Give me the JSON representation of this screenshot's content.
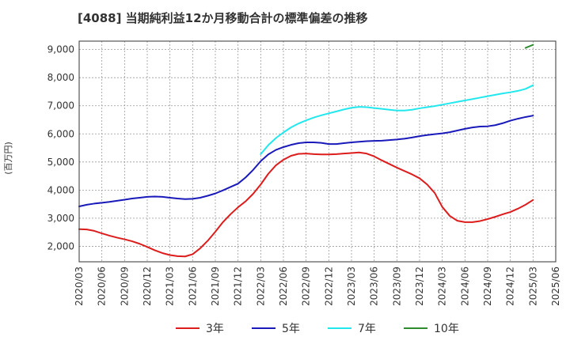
{
  "chart_data": {
    "type": "line",
    "title": "[4088]  当期純利益12か月移動合計の標準偏差の推移",
    "ylabel": "(百万円)",
    "xlabel": "",
    "ylim": [
      1450,
      9300
    ],
    "yticks": [
      2000,
      3000,
      4000,
      5000,
      6000,
      7000,
      8000,
      9000
    ],
    "ytick_labels": [
      "2,000",
      "3,000",
      "4,000",
      "5,000",
      "6,000",
      "7,000",
      "8,000",
      "9,000"
    ],
    "xlim": [
      "2020-03",
      "2025-06"
    ],
    "xtick_labels": [
      "2020/03",
      "2020/06",
      "2020/09",
      "2020/12",
      "2021/03",
      "2021/06",
      "2021/09",
      "2021/12",
      "2022/03",
      "2022/06",
      "2022/09",
      "2022/12",
      "2023/03",
      "2023/06",
      "2023/09",
      "2023/12",
      "2024/03",
      "2024/06",
      "2024/09",
      "2024/12",
      "2025/03",
      "2025/06"
    ],
    "grid": true,
    "legend_position": "bottom",
    "series": [
      {
        "name": "3年",
        "color": "#dd1c1c",
        "x": [
          "2020-03",
          "2020-04",
          "2020-05",
          "2020-06",
          "2020-07",
          "2020-08",
          "2020-09",
          "2020-10",
          "2020-11",
          "2020-12",
          "2021-01",
          "2021-02",
          "2021-03",
          "2021-04",
          "2021-05",
          "2021-06",
          "2021-07",
          "2021-08",
          "2021-09",
          "2021-10",
          "2021-11",
          "2021-12",
          "2022-01",
          "2022-02",
          "2022-03",
          "2022-04",
          "2022-05",
          "2022-06",
          "2022-07",
          "2022-08",
          "2022-09",
          "2022-10",
          "2022-11",
          "2022-12",
          "2023-01",
          "2023-02",
          "2023-03",
          "2023-04",
          "2023-05",
          "2023-06",
          "2023-07",
          "2023-08",
          "2023-09",
          "2023-10",
          "2023-11",
          "2023-12",
          "2024-01",
          "2024-02",
          "2024-03",
          "2024-04",
          "2024-05",
          "2024-06",
          "2024-07",
          "2024-08",
          "2024-09",
          "2024-10",
          "2024-11",
          "2024-12",
          "2025-01",
          "2025-02",
          "2025-03"
        ],
        "values": [
          2610,
          2600,
          2550,
          2460,
          2380,
          2310,
          2250,
          2180,
          2090,
          1980,
          1860,
          1760,
          1690,
          1650,
          1640,
          1720,
          1930,
          2200,
          2520,
          2860,
          3140,
          3390,
          3600,
          3870,
          4200,
          4580,
          4880,
          5080,
          5220,
          5290,
          5300,
          5280,
          5270,
          5270,
          5280,
          5300,
          5320,
          5340,
          5300,
          5200,
          5060,
          4930,
          4800,
          4680,
          4560,
          4420,
          4200,
          3900,
          3400,
          3080,
          2910,
          2860,
          2860,
          2900,
          2970,
          3050,
          3140,
          3220,
          3340,
          3480,
          3650
        ]
      },
      {
        "name": "5年",
        "color": "#1a1aba",
        "x": [
          "2020-03",
          "2020-04",
          "2020-05",
          "2020-06",
          "2020-07",
          "2020-08",
          "2020-09",
          "2020-10",
          "2020-11",
          "2020-12",
          "2021-01",
          "2021-02",
          "2021-03",
          "2021-04",
          "2021-05",
          "2021-06",
          "2021-07",
          "2021-08",
          "2021-09",
          "2021-10",
          "2021-11",
          "2021-12",
          "2022-01",
          "2022-02",
          "2022-03",
          "2022-04",
          "2022-05",
          "2022-06",
          "2022-07",
          "2022-08",
          "2022-09",
          "2022-10",
          "2022-11",
          "2022-12",
          "2023-01",
          "2023-02",
          "2023-03",
          "2023-04",
          "2023-05",
          "2023-06",
          "2023-07",
          "2023-08",
          "2023-09",
          "2023-10",
          "2023-11",
          "2023-12",
          "2024-01",
          "2024-02",
          "2024-03",
          "2024-04",
          "2024-05",
          "2024-06",
          "2024-07",
          "2024-08",
          "2024-09",
          "2024-10",
          "2024-11",
          "2024-12",
          "2025-01",
          "2025-02",
          "2025-03"
        ],
        "values": [
          3420,
          3480,
          3520,
          3550,
          3580,
          3620,
          3660,
          3700,
          3730,
          3760,
          3770,
          3760,
          3730,
          3700,
          3680,
          3690,
          3730,
          3800,
          3880,
          3990,
          4110,
          4230,
          4450,
          4720,
          5030,
          5270,
          5430,
          5530,
          5610,
          5670,
          5700,
          5700,
          5680,
          5640,
          5640,
          5670,
          5700,
          5720,
          5740,
          5750,
          5760,
          5780,
          5800,
          5830,
          5870,
          5920,
          5960,
          5990,
          6020,
          6060,
          6120,
          6180,
          6230,
          6260,
          6270,
          6310,
          6380,
          6470,
          6540,
          6600,
          6650
        ]
      },
      {
        "name": "7年",
        "color": "#22e8ee",
        "x": [
          "2022-03",
          "2022-04",
          "2022-05",
          "2022-06",
          "2022-07",
          "2022-08",
          "2022-09",
          "2022-10",
          "2022-11",
          "2022-12",
          "2023-01",
          "2023-02",
          "2023-03",
          "2023-04",
          "2023-05",
          "2023-06",
          "2023-07",
          "2023-08",
          "2023-09",
          "2023-10",
          "2023-11",
          "2023-12",
          "2024-01",
          "2024-02",
          "2024-03",
          "2024-04",
          "2024-05",
          "2024-06",
          "2024-07",
          "2024-08",
          "2024-09",
          "2024-10",
          "2024-11",
          "2024-12",
          "2025-01",
          "2025-02",
          "2025-03"
        ],
        "values": [
          5280,
          5600,
          5850,
          6050,
          6230,
          6370,
          6480,
          6580,
          6660,
          6730,
          6800,
          6870,
          6930,
          6960,
          6950,
          6920,
          6890,
          6860,
          6830,
          6830,
          6860,
          6910,
          6950,
          6990,
          7040,
          7090,
          7140,
          7190,
          7240,
          7290,
          7340,
          7390,
          7440,
          7480,
          7530,
          7600,
          7730
        ]
      },
      {
        "name": "10年",
        "color": "#2e8b2e",
        "x": [
          "2025-02",
          "2025-03"
        ],
        "values": [
          9060,
          9170
        ]
      }
    ]
  }
}
